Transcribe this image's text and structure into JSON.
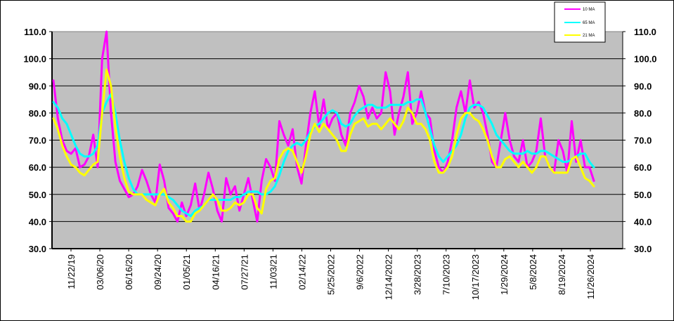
{
  "chart_data": {
    "type": "line",
    "title": "",
    "xlabel": "",
    "ylabel": "",
    "ylim": [
      30,
      110
    ],
    "y_ticks": [
      "30.0",
      "40.0",
      "50.0",
      "60.0",
      "70.0",
      "80.0",
      "90.0",
      "100.0",
      "110.0"
    ],
    "y_tick_values": [
      30,
      40,
      50,
      60,
      70,
      80,
      90,
      100,
      110
    ],
    "x_tick_labels": [
      "11/22/19",
      "03/06/20",
      "06/16/20",
      "09/24/20",
      "01/05/21",
      "04/16/21",
      "07/27/21",
      "11/03/21",
      "02/14/22",
      "5/25/2022",
      "9/6/2022",
      "12/14/2022",
      "3/28/2023",
      "7/10/2023",
      "10/17/2023",
      "1/29/2024",
      "5/8/2024",
      "8/19/2024",
      "11/26/2024"
    ],
    "grid": true,
    "legend_position": "top-right",
    "plot_background": "#c0c0c0",
    "legend": [
      "10 MA",
      "65 MA",
      "21 MA"
    ],
    "series": [
      {
        "name": "10 MA",
        "color": "#ff00ff",
        "values": [
          92,
          78,
          70,
          66,
          65,
          67,
          60,
          61,
          64,
          72,
          60,
          100,
          112,
          80,
          62,
          55,
          52,
          49,
          50,
          53,
          59,
          55,
          50,
          47,
          61,
          55,
          45,
          43,
          40,
          47,
          42,
          46,
          54,
          44,
          50,
          58,
          52,
          44,
          40,
          56,
          50,
          53,
          44,
          50,
          56,
          48,
          40,
          55,
          63,
          60,
          55,
          77,
          72,
          68,
          74,
          60,
          54,
          68,
          80,
          88,
          75,
          85,
          74,
          78,
          80,
          72,
          68,
          80,
          84,
          90,
          86,
          78,
          82,
          78,
          80,
          95,
          88,
          72,
          80,
          86,
          95,
          76,
          80,
          88,
          80,
          78,
          66,
          60,
          58,
          62,
          70,
          82,
          88,
          80,
          92,
          82,
          84,
          80,
          72,
          62,
          60,
          70,
          80,
          70,
          64,
          62,
          70,
          60,
          62,
          66,
          78,
          64,
          60,
          58,
          70,
          66,
          58,
          77,
          62,
          70,
          60,
          60,
          55
        ]
      },
      {
        "name": "65 MA",
        "color": "#00ffff",
        "values": [
          84,
          82,
          78,
          76,
          72,
          68,
          65,
          64,
          64,
          65,
          68,
          80,
          84,
          87,
          80,
          70,
          62,
          56,
          52,
          50,
          50,
          50,
          50,
          50,
          50,
          50,
          49,
          48,
          46,
          44,
          43,
          42,
          44,
          45,
          46,
          48,
          48,
          48,
          48,
          48,
          48,
          49,
          49,
          50,
          51,
          51,
          51,
          50,
          50,
          51,
          53,
          57,
          62,
          66,
          68,
          69,
          68,
          70,
          73,
          75,
          76,
          78,
          80,
          81,
          80,
          76,
          75,
          76,
          79,
          81,
          82,
          83,
          83,
          82,
          82,
          82,
          83,
          83,
          83,
          83,
          84,
          84,
          85,
          85,
          80,
          74,
          68,
          64,
          62,
          64,
          66,
          68,
          72,
          78,
          82,
          83,
          83,
          82,
          79,
          76,
          72,
          70,
          68,
          66,
          65,
          65,
          65,
          66,
          65,
          65,
          66,
          66,
          65,
          64,
          63,
          62,
          62,
          63,
          64,
          65,
          65,
          62,
          60
        ]
      },
      {
        "name": "21 MA",
        "color": "#ffff00",
        "values": [
          78,
          74,
          68,
          64,
          61,
          60,
          58,
          57,
          59,
          61,
          62,
          80,
          96,
          90,
          75,
          64,
          56,
          51,
          50,
          50,
          50,
          48,
          47,
          46,
          50,
          52,
          47,
          45,
          42,
          42,
          40,
          40,
          43,
          44,
          46,
          48,
          50,
          48,
          44,
          44,
          45,
          47,
          46,
          47,
          50,
          50,
          45,
          43,
          52,
          55,
          56,
          63,
          66,
          67,
          66,
          62,
          58,
          64,
          72,
          76,
          73,
          76,
          74,
          72,
          70,
          66,
          66,
          72,
          76,
          77,
          78,
          75,
          76,
          76,
          74,
          76,
          78,
          76,
          74,
          77,
          82,
          80,
          76,
          76,
          74,
          70,
          62,
          58,
          58,
          60,
          64,
          72,
          78,
          80,
          80,
          78,
          77,
          74,
          70,
          64,
          60,
          60,
          63,
          64,
          62,
          60,
          62,
          60,
          58,
          60,
          64,
          64,
          60,
          58,
          58,
          58,
          58,
          63,
          64,
          60,
          56,
          55,
          53
        ]
      }
    ]
  }
}
